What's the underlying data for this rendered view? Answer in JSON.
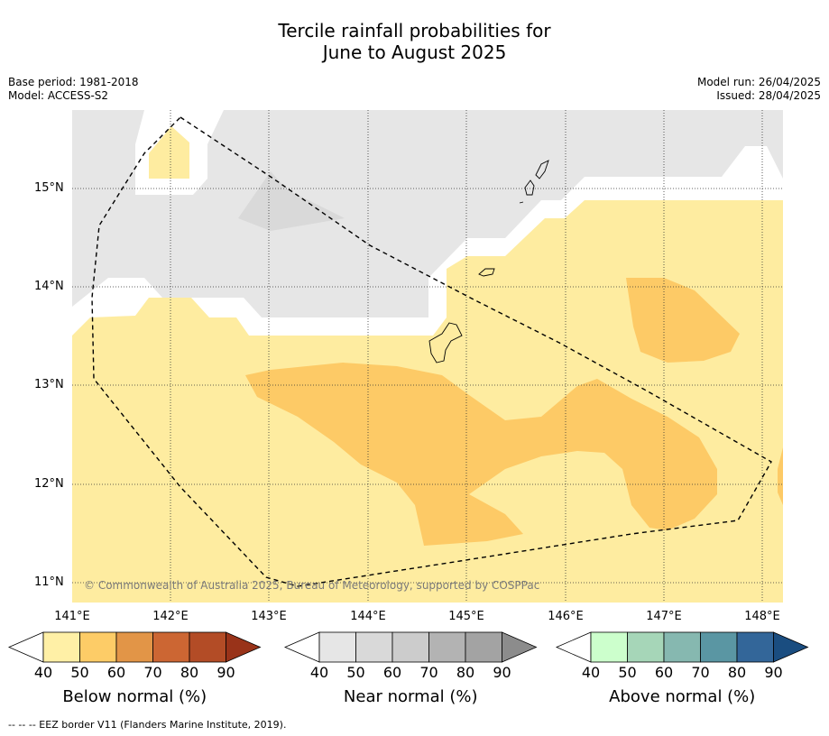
{
  "title": {
    "line1": "Tercile rainfall probabilities for",
    "line2": "June to August 2025"
  },
  "meta": {
    "base_period": "Base period: 1981-2018",
    "model": "Model: ACCESS-S2",
    "model_run": "Model run: 26/04/2025",
    "issued": "Issued: 28/04/2025"
  },
  "map": {
    "lat_labels": [
      "15°N",
      "14°N",
      "13°N",
      "12°N",
      "11°N"
    ],
    "lon_labels": [
      "141°E",
      "142°E",
      "143°E",
      "144°E",
      "145°E",
      "146°E",
      "147°E",
      "148°E"
    ],
    "copyright": "© Commonwealth of Australia 2025, Bureau of Meteorology, supported by COSPPac",
    "region_colors": {
      "near_normal_40": "#e6e6e6",
      "near_normal_50": "#d9d9d9",
      "below_normal_40": "#feeca0",
      "below_normal_50": "#fecb66"
    }
  },
  "colorbars": [
    {
      "title": "Below normal (%)",
      "ticks": [
        "40",
        "50",
        "60",
        "70",
        "80",
        "90"
      ],
      "colors": [
        "#fff0a6",
        "#fdcc67",
        "#e29547",
        "#cc6633",
        "#b34c26",
        "#993319"
      ]
    },
    {
      "title": "Near normal (%)",
      "ticks": [
        "40",
        "50",
        "60",
        "70",
        "80",
        "90"
      ],
      "colors": [
        "#e6e6e6",
        "#d9d9d9",
        "#cccccc",
        "#b3b3b3",
        "#a3a3a3",
        "#8c8c8c"
      ]
    },
    {
      "title": "Above normal (%)",
      "ticks": [
        "40",
        "50",
        "60",
        "70",
        "80",
        "90"
      ],
      "colors": [
        "#ccffcc",
        "#a6d6b8",
        "#86b8b0",
        "#5a96a3",
        "#336699",
        "#1a4d80"
      ]
    }
  ],
  "footnote": "--  --  -- EEZ border V11 (Flanders Marine Institute, 2019)."
}
